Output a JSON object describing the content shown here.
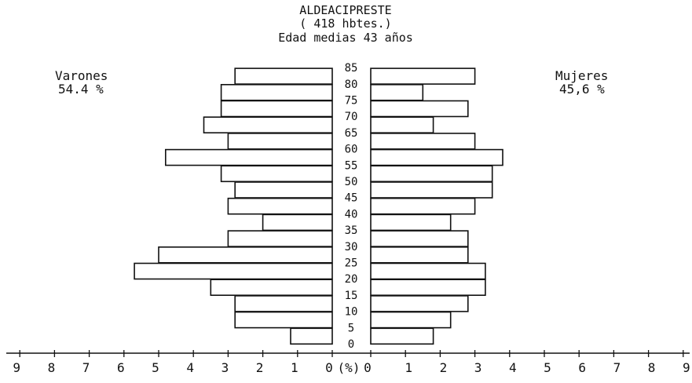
{
  "chart_data": {
    "type": "bar",
    "subtype": "population-pyramid",
    "title": "ALDEACIPRESTE",
    "subtitle_lines": [
      "( 418  hbtes.)",
      "Edad medias  43  años"
    ],
    "left_label": "Varones",
    "left_value": "54.4 %",
    "right_label": "Mujeres",
    "right_value": "45,6 %",
    "center_unit": "(%)",
    "age_labels": [
      "0",
      "5",
      "10",
      "15",
      "20",
      "25",
      "30",
      "35",
      "40",
      "45",
      "50",
      "55",
      "60",
      "65",
      "70",
      "75",
      "80",
      "85"
    ],
    "x_ticks_left": [
      "9",
      "8",
      "7",
      "6",
      "5",
      "4",
      "3",
      "2",
      "1",
      "0"
    ],
    "x_ticks_right": [
      "0",
      "1",
      "2",
      "3",
      "4",
      "5",
      "6",
      "7",
      "8",
      "9"
    ],
    "xlim": [
      0,
      9
    ],
    "series": [
      {
        "name": "Varones",
        "side": "left",
        "values": [
          1.2,
          2.8,
          2.8,
          3.5,
          5.7,
          5.0,
          3.0,
          2.0,
          3.0,
          2.8,
          3.2,
          4.8,
          3.0,
          3.7,
          3.2,
          3.2,
          2.8
        ]
      },
      {
        "name": "Mujeres",
        "side": "right",
        "values": [
          1.8,
          2.3,
          2.8,
          3.3,
          3.3,
          2.8,
          2.8,
          2.3,
          3.0,
          3.5,
          3.5,
          3.8,
          3.0,
          1.8,
          2.8,
          1.5,
          3.0
        ]
      }
    ]
  }
}
